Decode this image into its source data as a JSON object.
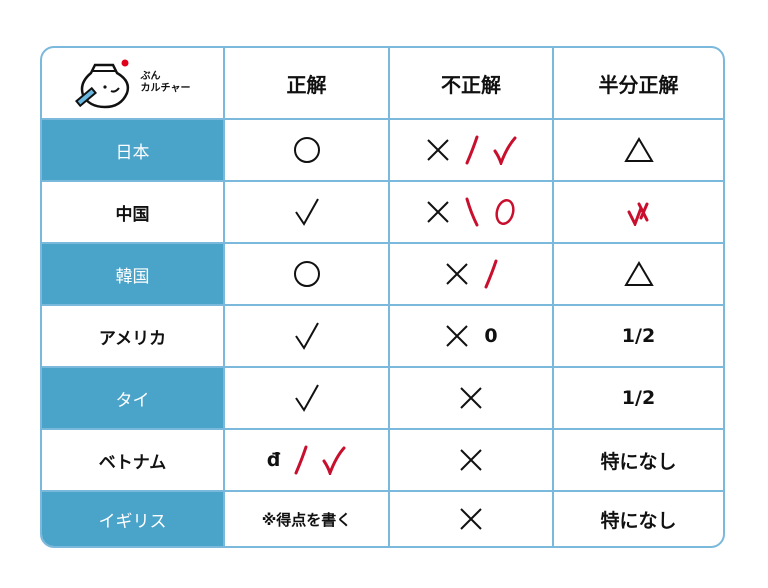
{
  "logo": {
    "line1": "ぶん",
    "line2": "カルチャー"
  },
  "headers": [
    "正解",
    "不正解",
    "半分正解"
  ],
  "colors": {
    "accent": "#4aa3c8",
    "border": "#7ab8dc",
    "red": "#c8102e"
  },
  "rows": [
    {
      "country": "日本",
      "highlight": true,
      "correct": [
        {
          "mark": "circle"
        }
      ],
      "incorrect": [
        {
          "mark": "cross"
        },
        {
          "mark": "red-slash"
        },
        {
          "mark": "red-check"
        }
      ],
      "half": [
        {
          "mark": "triangle"
        }
      ]
    },
    {
      "country": "中国",
      "highlight": false,
      "correct": [
        {
          "mark": "check"
        }
      ],
      "incorrect": [
        {
          "mark": "cross"
        },
        {
          "mark": "red-backslash"
        },
        {
          "mark": "red-circle"
        }
      ],
      "half": [
        {
          "mark": "red-check-cross"
        }
      ]
    },
    {
      "country": "韓国",
      "highlight": true,
      "correct": [
        {
          "mark": "circle"
        }
      ],
      "incorrect": [
        {
          "mark": "cross"
        },
        {
          "mark": "red-slash"
        }
      ],
      "half": [
        {
          "mark": "triangle"
        }
      ]
    },
    {
      "country": "アメリカ",
      "highlight": false,
      "correct": [
        {
          "mark": "check"
        }
      ],
      "incorrect": [
        {
          "mark": "cross"
        },
        {
          "text": "0"
        }
      ],
      "half": [
        {
          "text": "1/2"
        }
      ]
    },
    {
      "country": "タイ",
      "highlight": true,
      "correct": [
        {
          "mark": "check"
        }
      ],
      "incorrect": [
        {
          "mark": "cross"
        }
      ],
      "half": [
        {
          "text": "1/2"
        }
      ]
    },
    {
      "country": "ベトナム",
      "highlight": false,
      "correct": [
        {
          "text": "đ"
        },
        {
          "mark": "red-slash"
        },
        {
          "mark": "red-check"
        }
      ],
      "incorrect": [
        {
          "mark": "cross"
        }
      ],
      "half": [
        {
          "text": "特になし"
        }
      ]
    },
    {
      "country": "イギリス",
      "highlight": true,
      "correct": [
        {
          "text": "※得点を書く"
        }
      ],
      "incorrect": [
        {
          "mark": "cross"
        }
      ],
      "half": [
        {
          "text": "特になし"
        }
      ]
    }
  ]
}
